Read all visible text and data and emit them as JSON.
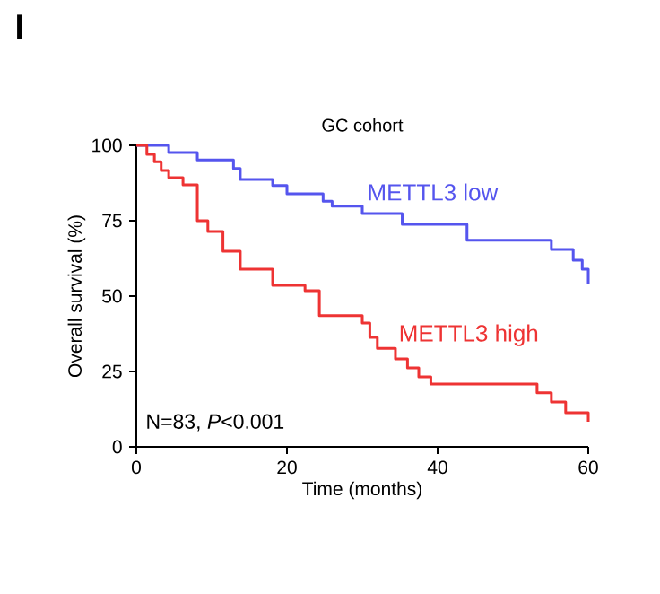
{
  "chart_data": {
    "type": "step",
    "title": "GC cohort",
    "xlabel": "Time (months)",
    "ylabel": "Overall survival (%)",
    "xlim": [
      0,
      60
    ],
    "ylim": [
      0,
      100
    ],
    "xticks": [
      0,
      20,
      40,
      60
    ],
    "yticks": [
      0,
      25,
      50,
      75,
      100
    ],
    "legend": false,
    "annotations": [
      "N=83, *P*<0.001",
      "I"
    ],
    "series": [
      {
        "name": "METTL3 low",
        "color": "#5555ee",
        "x": [
          0,
          4.3,
          8.1,
          12.9,
          13.8,
          18.1,
          20,
          24.8,
          26,
          30,
          35.3,
          43.9,
          55.1,
          58,
          59.2,
          60
        ],
        "values": [
          100,
          97.6,
          95.2,
          92.3,
          88.7,
          86.7,
          83.9,
          81.5,
          79.8,
          77.4,
          73.8,
          68.5,
          65.5,
          61.9,
          58.9,
          54.2
        ]
      },
      {
        "name": "METTL3 high",
        "color": "#ee3333",
        "x": [
          0,
          1.4,
          2.4,
          3.3,
          4.3,
          6.2,
          8.1,
          9.5,
          11.5,
          13.8,
          18.1,
          22.4,
          24.3,
          30,
          31,
          32,
          34.4,
          36,
          37.5,
          39.1,
          53.2,
          55.1,
          57,
          60
        ],
        "values": [
          100,
          97,
          94.6,
          91.7,
          89.3,
          86.9,
          75,
          71.4,
          64.9,
          58.9,
          53.6,
          51.8,
          43.5,
          41.1,
          36.3,
          32.7,
          29.2,
          26.2,
          23.2,
          20.8,
          17.9,
          14.9,
          11.3,
          8.3
        ]
      }
    ]
  }
}
